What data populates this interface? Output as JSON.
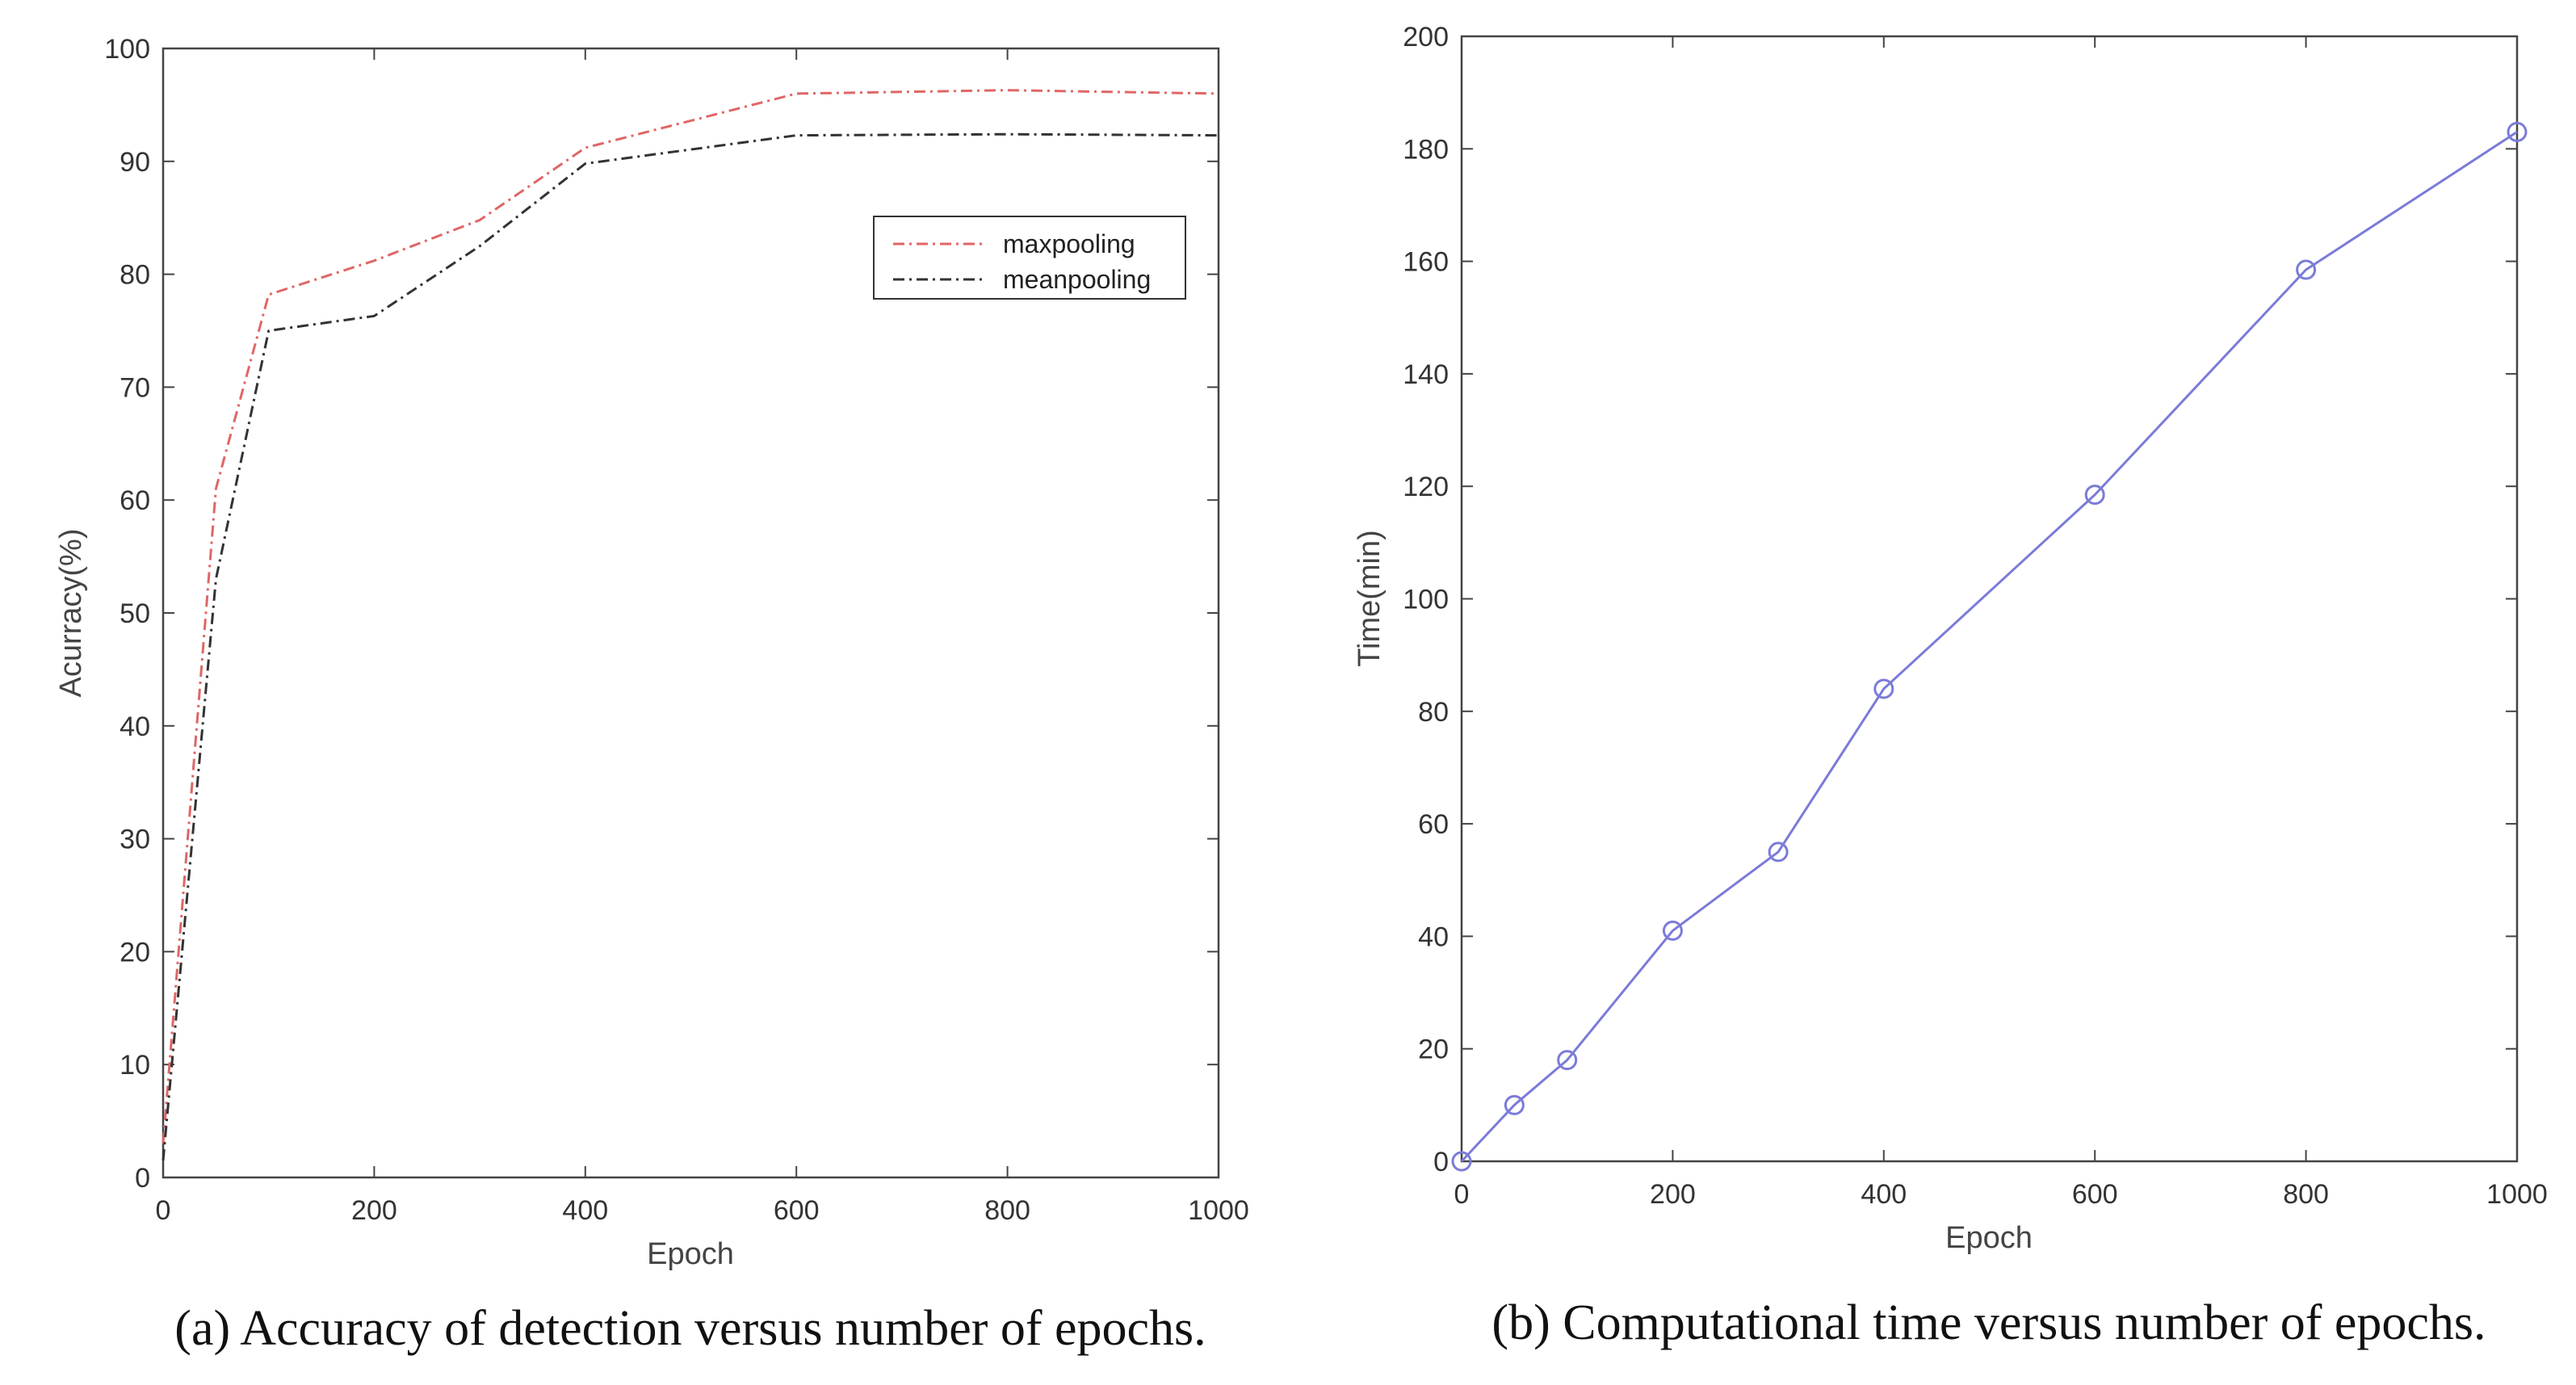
{
  "chart_data": [
    {
      "type": "line",
      "panel": "a",
      "title": "",
      "xlabel": "Epoch",
      "ylabel": "Acurracy(%)",
      "xlim": [
        0,
        1000
      ],
      "ylim": [
        0,
        100
      ],
      "xticks": [
        0,
        200,
        400,
        600,
        800,
        1000
      ],
      "yticks": [
        0,
        10,
        20,
        30,
        40,
        50,
        60,
        70,
        80,
        90,
        100
      ],
      "legend_position": "top-right",
      "series": [
        {
          "name": "maxpooling",
          "color": "#e06666",
          "style": "dash-dot",
          "x": [
            0,
            50,
            100,
            200,
            300,
            400,
            600,
            800,
            1000
          ],
          "y": [
            3,
            61,
            78.2,
            81.2,
            84.8,
            91.2,
            96,
            96.3,
            96
          ]
        },
        {
          "name": "meanpooling",
          "color": "#333333",
          "style": "dash-dot",
          "x": [
            0,
            50,
            100,
            200,
            300,
            400,
            600,
            800,
            1000
          ],
          "y": [
            1.5,
            53,
            75,
            76.3,
            82.5,
            89.8,
            92.3,
            92.4,
            92.3
          ]
        }
      ],
      "caption": "(a) Accuracy of detection versus number of epochs."
    },
    {
      "type": "line",
      "panel": "b",
      "title": "",
      "xlabel": "Epoch",
      "ylabel": "Time(min)",
      "xlim": [
        0,
        1000
      ],
      "ylim": [
        0,
        200
      ],
      "xticks": [
        0,
        200,
        400,
        600,
        800,
        1000
      ],
      "yticks": [
        0,
        20,
        40,
        60,
        80,
        100,
        120,
        140,
        160,
        180,
        200
      ],
      "markers": "circle",
      "series": [
        {
          "name": "time",
          "color": "#7b7bd9",
          "x": [
            0,
            50,
            100,
            200,
            300,
            400,
            600,
            800,
            1000
          ],
          "y": [
            0,
            10,
            18,
            41,
            55,
            84,
            118.5,
            158.5,
            183
          ]
        }
      ],
      "caption": "(b) Computational time versus number of epochs."
    }
  ]
}
